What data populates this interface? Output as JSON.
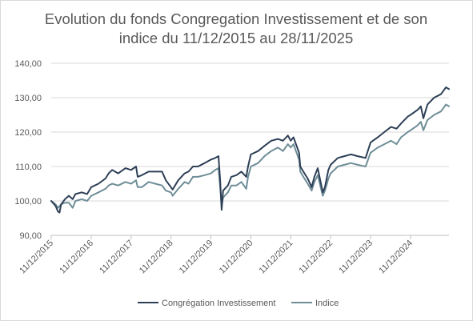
{
  "chart_data": {
    "type": "line",
    "title_lines": [
      "Evolution du fonds Congregation Investissement et de son",
      "indice du 11/12/2015 au 28/11/2025"
    ],
    "xlabel": "",
    "ylabel": "",
    "xlim": [
      "2015-12-11",
      "2025-11-28"
    ],
    "ylim": [
      90,
      140
    ],
    "yticks": [
      90,
      100,
      110,
      120,
      130,
      140
    ],
    "ytick_labels": [
      "90,00",
      "100,00",
      "110,00",
      "120,00",
      "130,00",
      "140,00"
    ],
    "xticks": [
      "2015-12-11",
      "2016-12-11",
      "2017-12-11",
      "2018-12-11",
      "2019-12-11",
      "2020-12-11",
      "2021-12-11",
      "2022-12-11",
      "2023-12-11",
      "2024-12-11"
    ],
    "xtick_labels": [
      "11/12/2015",
      "11/12/2016",
      "11/12/2017",
      "11/12/2018",
      "11/12/2019",
      "11/12/2020",
      "11/12/2021",
      "11/12/2022",
      "11/12/2023",
      "11/12/2024"
    ],
    "grid": "horizontal",
    "legend": "bottom",
    "series": [
      {
        "name": "Congrégation Investissement",
        "color": "#2e4057",
        "points": [
          [
            "2015-12-11",
            100.0
          ],
          [
            "2016-01-20",
            98.5
          ],
          [
            "2016-02-11",
            96.9
          ],
          [
            "2016-02-25",
            96.6
          ],
          [
            "2016-03-10",
            99.0
          ],
          [
            "2016-04-15",
            100.5
          ],
          [
            "2016-05-20",
            101.5
          ],
          [
            "2016-06-24",
            100.5
          ],
          [
            "2016-07-20",
            102.0
          ],
          [
            "2016-09-15",
            102.5
          ],
          [
            "2016-11-04",
            102.0
          ],
          [
            "2016-12-11",
            104.0
          ],
          [
            "2017-02-15",
            105.0
          ],
          [
            "2017-04-20",
            106.5
          ],
          [
            "2017-05-20",
            108.0
          ],
          [
            "2017-06-20",
            109.0
          ],
          [
            "2017-08-15",
            108.0
          ],
          [
            "2017-10-20",
            109.5
          ],
          [
            "2017-12-11",
            109.0
          ],
          [
            "2018-01-25",
            110.0
          ],
          [
            "2018-02-09",
            107.0
          ],
          [
            "2018-03-20",
            107.5
          ],
          [
            "2018-05-20",
            108.5
          ],
          [
            "2018-07-20",
            108.5
          ],
          [
            "2018-09-20",
            108.5
          ],
          [
            "2018-10-25",
            106.0
          ],
          [
            "2018-12-11",
            104.0
          ],
          [
            "2018-12-26",
            103.3
          ],
          [
            "2019-02-15",
            106.0
          ],
          [
            "2019-04-15",
            108.0
          ],
          [
            "2019-05-20",
            108.5
          ],
          [
            "2019-06-30",
            110.0
          ],
          [
            "2019-08-15",
            110.0
          ],
          [
            "2019-10-15",
            111.0
          ],
          [
            "2019-12-11",
            112.0
          ],
          [
            "2020-01-20",
            112.5
          ],
          [
            "2020-02-19",
            113.0
          ],
          [
            "2020-03-05",
            106.0
          ],
          [
            "2020-03-18",
            97.4
          ],
          [
            "2020-04-01",
            103.0
          ],
          [
            "2020-05-15",
            104.5
          ],
          [
            "2020-06-15",
            107.0
          ],
          [
            "2020-08-01",
            107.5
          ],
          [
            "2020-09-15",
            108.5
          ],
          [
            "2020-10-30",
            107.0
          ],
          [
            "2020-11-15",
            110.0
          ],
          [
            "2020-12-11",
            113.5
          ],
          [
            "2021-02-15",
            114.5
          ],
          [
            "2021-04-15",
            116.0
          ],
          [
            "2021-06-15",
            117.5
          ],
          [
            "2021-08-15",
            118.0
          ],
          [
            "2021-10-01",
            117.5
          ],
          [
            "2021-11-15",
            119.0
          ],
          [
            "2021-12-11",
            117.5
          ],
          [
            "2022-01-05",
            118.5
          ],
          [
            "2022-02-25",
            114.0
          ],
          [
            "2022-03-08",
            110.0
          ],
          [
            "2022-04-15",
            108.0
          ],
          [
            "2022-05-15",
            106.5
          ],
          [
            "2022-06-20",
            104.0
          ],
          [
            "2022-07-15",
            107.0
          ],
          [
            "2022-08-15",
            109.5
          ],
          [
            "2022-09-30",
            102.5
          ],
          [
            "2022-10-20",
            104.0
          ],
          [
            "2022-11-20",
            109.0
          ],
          [
            "2022-12-11",
            110.5
          ],
          [
            "2023-02-15",
            112.5
          ],
          [
            "2023-04-15",
            113.0
          ],
          [
            "2023-06-15",
            113.5
          ],
          [
            "2023-08-15",
            113.0
          ],
          [
            "2023-10-27",
            112.5
          ],
          [
            "2023-12-11",
            117.0
          ],
          [
            "2024-02-15",
            118.5
          ],
          [
            "2024-04-15",
            120.0
          ],
          [
            "2024-06-15",
            121.5
          ],
          [
            "2024-08-05",
            121.0
          ],
          [
            "2024-09-15",
            122.5
          ],
          [
            "2024-11-15",
            124.5
          ],
          [
            "2024-12-11",
            125.0
          ],
          [
            "2025-02-15",
            126.5
          ],
          [
            "2025-03-15",
            127.5
          ],
          [
            "2025-04-08",
            124.0
          ],
          [
            "2025-05-15",
            128.0
          ],
          [
            "2025-07-15",
            130.0
          ],
          [
            "2025-09-15",
            131.0
          ],
          [
            "2025-10-31",
            133.0
          ],
          [
            "2025-11-28",
            132.5
          ]
        ]
      },
      {
        "name": "Indice",
        "color": "#6f8e98",
        "points": [
          [
            "2015-12-11",
            100.0
          ],
          [
            "2016-01-20",
            99.0
          ],
          [
            "2016-02-11",
            98.0
          ],
          [
            "2016-02-25",
            98.5
          ],
          [
            "2016-03-10",
            99.0
          ],
          [
            "2016-04-15",
            99.5
          ],
          [
            "2016-05-20",
            99.5
          ],
          [
            "2016-06-24",
            98.0
          ],
          [
            "2016-07-20",
            100.0
          ],
          [
            "2016-09-15",
            100.5
          ],
          [
            "2016-11-04",
            100.0
          ],
          [
            "2016-12-11",
            101.5
          ],
          [
            "2017-02-15",
            102.5
          ],
          [
            "2017-04-20",
            103.5
          ],
          [
            "2017-05-20",
            104.5
          ],
          [
            "2017-06-20",
            105.0
          ],
          [
            "2017-08-15",
            104.5
          ],
          [
            "2017-10-20",
            105.5
          ],
          [
            "2017-12-11",
            105.0
          ],
          [
            "2018-01-25",
            106.0
          ],
          [
            "2018-02-09",
            104.0
          ],
          [
            "2018-03-20",
            104.0
          ],
          [
            "2018-05-20",
            105.5
          ],
          [
            "2018-07-20",
            105.0
          ],
          [
            "2018-09-20",
            104.5
          ],
          [
            "2018-10-25",
            103.0
          ],
          [
            "2018-12-11",
            102.5
          ],
          [
            "2018-12-26",
            101.5
          ],
          [
            "2019-02-15",
            103.5
          ],
          [
            "2019-04-15",
            105.5
          ],
          [
            "2019-05-20",
            105.0
          ],
          [
            "2019-06-30",
            107.0
          ],
          [
            "2019-08-15",
            107.0
          ],
          [
            "2019-10-15",
            107.5
          ],
          [
            "2019-12-11",
            108.0
          ],
          [
            "2020-01-20",
            109.0
          ],
          [
            "2020-02-19",
            109.5
          ],
          [
            "2020-03-05",
            104.0
          ],
          [
            "2020-03-18",
            98.5
          ],
          [
            "2020-04-01",
            101.0
          ],
          [
            "2020-05-15",
            102.5
          ],
          [
            "2020-06-15",
            104.5
          ],
          [
            "2020-08-01",
            104.5
          ],
          [
            "2020-09-15",
            105.5
          ],
          [
            "2020-10-30",
            103.5
          ],
          [
            "2020-11-15",
            107.0
          ],
          [
            "2020-12-11",
            110.0
          ],
          [
            "2021-02-15",
            111.0
          ],
          [
            "2021-04-15",
            113.0
          ],
          [
            "2021-06-15",
            114.5
          ],
          [
            "2021-08-15",
            115.5
          ],
          [
            "2021-10-01",
            114.5
          ],
          [
            "2021-11-15",
            116.5
          ],
          [
            "2021-12-11",
            115.5
          ],
          [
            "2022-01-05",
            116.5
          ],
          [
            "2022-02-25",
            112.0
          ],
          [
            "2022-03-08",
            108.5
          ],
          [
            "2022-04-15",
            106.5
          ],
          [
            "2022-05-15",
            105.0
          ],
          [
            "2022-06-20",
            103.0
          ],
          [
            "2022-07-15",
            105.5
          ],
          [
            "2022-08-15",
            107.5
          ],
          [
            "2022-09-30",
            101.5
          ],
          [
            "2022-10-20",
            103.0
          ],
          [
            "2022-11-20",
            106.5
          ],
          [
            "2022-12-11",
            108.0
          ],
          [
            "2023-02-15",
            110.0
          ],
          [
            "2023-04-15",
            110.5
          ],
          [
            "2023-06-15",
            111.0
          ],
          [
            "2023-08-15",
            110.5
          ],
          [
            "2023-10-27",
            110.0
          ],
          [
            "2023-12-11",
            114.0
          ],
          [
            "2024-02-15",
            115.5
          ],
          [
            "2024-04-15",
            116.5
          ],
          [
            "2024-06-15",
            117.5
          ],
          [
            "2024-08-05",
            116.5
          ],
          [
            "2024-09-15",
            118.5
          ],
          [
            "2024-11-15",
            120.0
          ],
          [
            "2024-12-11",
            120.5
          ],
          [
            "2025-02-15",
            122.0
          ],
          [
            "2025-03-15",
            123.0
          ],
          [
            "2025-04-08",
            120.5
          ],
          [
            "2025-05-15",
            123.5
          ],
          [
            "2025-07-15",
            125.0
          ],
          [
            "2025-09-15",
            126.0
          ],
          [
            "2025-10-31",
            128.0
          ],
          [
            "2025-11-28",
            127.5
          ]
        ]
      }
    ]
  }
}
